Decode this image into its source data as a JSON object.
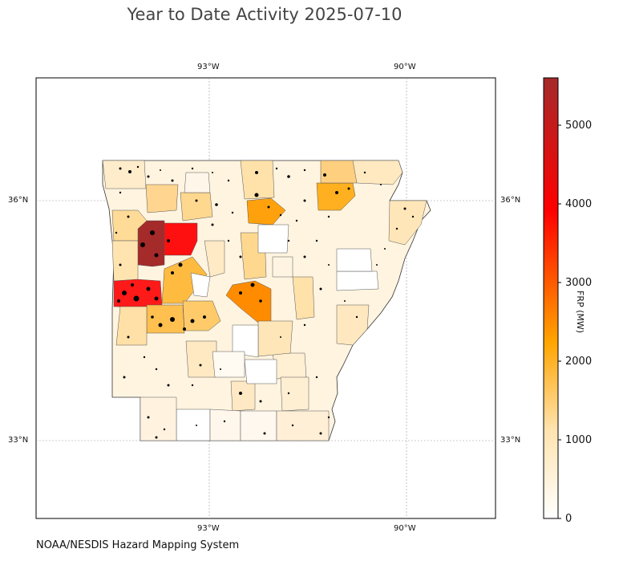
{
  "title": "Year to Date Activity 2025-07-10",
  "credit": "NOAA/NESDIS Hazard Mapping System",
  "map": {
    "region": "Arkansas counties",
    "gridlines": true,
    "lon_labels": [
      "93°W",
      "90°W"
    ],
    "lat_labels": [
      "36°N",
      "33°N"
    ]
  },
  "colorbar": {
    "label": "FRP (MW)",
    "min": 0,
    "max": 5600,
    "ticks": [
      "0",
      "1000",
      "2000",
      "3000",
      "4000",
      "5000"
    ],
    "colors": [
      "#ffffff",
      "#ffe3b0",
      "#ffa500",
      "#ff0000",
      "#a52a2a"
    ]
  }
}
